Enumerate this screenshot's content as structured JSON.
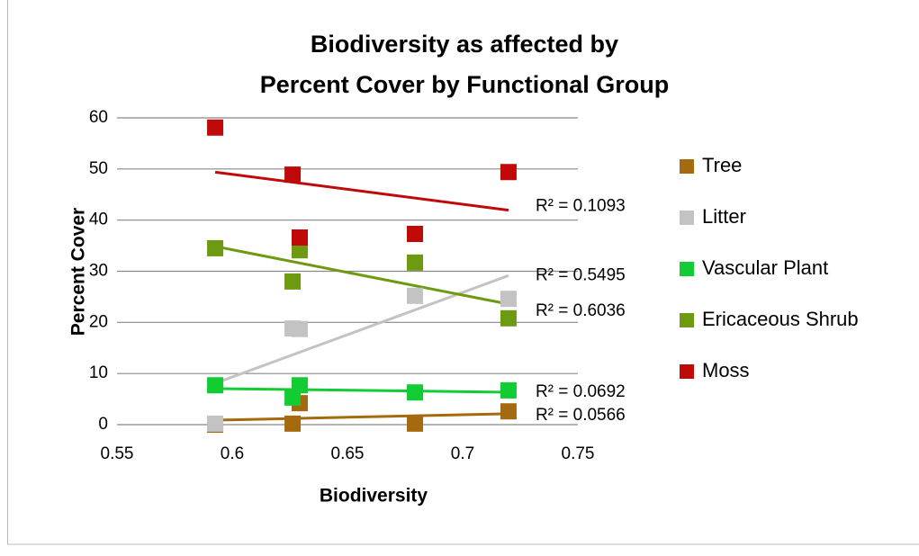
{
  "chart_data": {
    "type": "scatter",
    "title": [
      "Biodiversity as affected by",
      "Percent Cover by Functional Group"
    ],
    "x_label": "Biodiversity",
    "y_label": "Percent Cover",
    "x": [
      0.5926,
      0.6262,
      0.6293,
      0.6793,
      0.7199
    ],
    "series": [
      {
        "name": "Tree",
        "color": "#a5690f",
        "values": [
          0,
          0.2,
          4.2,
          0.2,
          2.6
        ],
        "trendline_label": "R² = 0.0566"
      },
      {
        "name": "Litter",
        "color": "#c3c3c3",
        "values": [
          0.2,
          18.8,
          18.7,
          25.2,
          24.6
        ],
        "trendline_label": "R² = 0.5495"
      },
      {
        "name": "Vascular Plant",
        "color": "#11cc33",
        "values": [
          7.7,
          5.3,
          7.7,
          6.3,
          6.7
        ],
        "trendline_label": "R² = 0.0692"
      },
      {
        "name": "Ericaceous Shrub",
        "color": "#6e9a12",
        "values": [
          34.5,
          28,
          34.1,
          31.7,
          20.8
        ],
        "trendline_label": "R² = 0.6036"
      },
      {
        "name": "Moss",
        "color": "#c00a0a",
        "values": [
          58.1,
          48.9,
          36.6,
          37.3,
          49.4
        ],
        "trendline_label": "R² = 0.1093"
      }
    ],
    "xlim": [
      0.55,
      0.75
    ],
    "xticks": [
      0.55,
      0.6,
      0.65,
      0.7,
      0.75
    ],
    "ylim": [
      0,
      60
    ],
    "yticks": [
      0,
      10,
      20,
      30,
      40,
      50,
      60
    ],
    "grid": true,
    "legend": "right"
  }
}
